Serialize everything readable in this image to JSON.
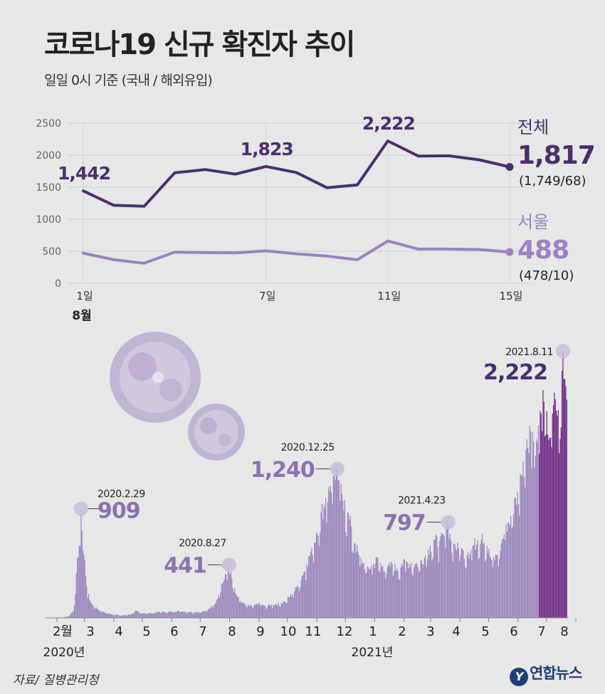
{
  "header": {
    "title": "코로나19 신규 확진자 추이",
    "subtitle": "일일 0시 기준 (국내 / 해외유입)"
  },
  "footer": {
    "source": "자료/ 질병관리청",
    "logo": "연합뉴스"
  },
  "colors": {
    "total": "#4a2f6e",
    "seoul": "#9a83bf",
    "bar": "#9a86bd",
    "bar_recent": "#6e2a86",
    "marker": "#c9bfdc",
    "background": "#e7e7e7"
  },
  "chart_data": [
    {
      "type": "line",
      "y_ticks": [
        "0",
        "500",
        "1000",
        "1500",
        "2000",
        "2500"
      ],
      "ylim": [
        0,
        2500
      ],
      "x_tick_labels": [
        {
          "x": 1,
          "label": "1일"
        },
        {
          "x": 7,
          "label": "7일"
        },
        {
          "x": 11,
          "label": "11일"
        },
        {
          "x": 15,
          "label": "15일"
        }
      ],
      "x_month_label": "8월",
      "x": [
        1,
        2,
        3,
        4,
        5,
        6,
        7,
        8,
        9,
        10,
        11,
        12,
        13,
        14,
        15
      ],
      "series": [
        {
          "name": "전체",
          "values": [
            1442,
            1218,
            1202,
            1725,
            1776,
            1704,
            1823,
            1729,
            1492,
            1537,
            2222,
            1987,
            1990,
            1928,
            1817
          ],
          "end_value": "1,817",
          "end_detail": "(1,749/68)",
          "point_labels": [
            {
              "x": 1,
              "text": "1,442"
            },
            {
              "x": 7,
              "text": "1,823"
            },
            {
              "x": 11,
              "text": "2,222"
            }
          ]
        },
        {
          "name": "서울",
          "values": [
            470,
            369,
            313,
            487,
            479,
            474,
            507,
            460,
            425,
            368,
            660,
            535,
            534,
            528,
            488
          ],
          "end_value": "488",
          "end_detail": "(478/10)"
        }
      ]
    },
    {
      "type": "bar",
      "x_labels": [
        "2월",
        "3",
        "4",
        "5",
        "6",
        "7",
        "8",
        "9",
        "10",
        "11",
        "12",
        "1",
        "2",
        "3",
        "4",
        "5",
        "6",
        "7",
        "8"
      ],
      "year_labels": [
        "2020년",
        "2021년"
      ],
      "ylim": [
        0,
        2400
      ],
      "anchors": [
        [
          0,
          0
        ],
        [
          12,
          1
        ],
        [
          18,
          3
        ],
        [
          25,
          20
        ],
        [
          29,
          60
        ],
        [
          31,
          200
        ],
        [
          33,
          500
        ],
        [
          35,
          600
        ],
        [
          37,
          909
        ],
        [
          39,
          560
        ],
        [
          41,
          480
        ],
        [
          43,
          260
        ],
        [
          46,
          150
        ],
        [
          50,
          100
        ],
        [
          60,
          50
        ],
        [
          70,
          30
        ],
        [
          80,
          20
        ],
        [
          90,
          30
        ],
        [
          95,
          60
        ],
        [
          100,
          40
        ],
        [
          110,
          40
        ],
        [
          120,
          50
        ],
        [
          130,
          50
        ],
        [
          140,
          60
        ],
        [
          150,
          50
        ],
        [
          160,
          50
        ],
        [
          170,
          60
        ],
        [
          175,
          100
        ],
        [
          180,
          150
        ],
        [
          185,
          280
        ],
        [
          190,
          360
        ],
        [
          193,
          441
        ],
        [
          196,
          330
        ],
        [
          200,
          200
        ],
        [
          205,
          140
        ],
        [
          210,
          110
        ],
        [
          215,
          100
        ],
        [
          220,
          110
        ],
        [
          225,
          120
        ],
        [
          230,
          100
        ],
        [
          240,
          110
        ],
        [
          250,
          130
        ],
        [
          260,
          200
        ],
        [
          265,
          270
        ],
        [
          270,
          350
        ],
        [
          275,
          450
        ],
        [
          280,
          580
        ],
        [
          285,
          700
        ],
        [
          290,
          880
        ],
        [
          295,
          1000
        ],
        [
          300,
          1100
        ],
        [
          303,
          1180
        ],
        [
          305,
          1150
        ],
        [
          307,
          1240
        ],
        [
          309,
          1150
        ],
        [
          312,
          1030
        ],
        [
          315,
          980
        ],
        [
          318,
          880
        ],
        [
          322,
          760
        ],
        [
          326,
          620
        ],
        [
          330,
          520
        ],
        [
          335,
          450
        ],
        [
          340,
          420
        ],
        [
          345,
          450
        ],
        [
          350,
          500
        ],
        [
          355,
          430
        ],
        [
          360,
          420
        ],
        [
          365,
          450
        ],
        [
          370,
          410
        ],
        [
          375,
          450
        ],
        [
          380,
          470
        ],
        [
          385,
          460
        ],
        [
          390,
          450
        ],
        [
          395,
          480
        ],
        [
          400,
          520
        ],
        [
          405,
          600
        ],
        [
          410,
          650
        ],
        [
          415,
          640
        ],
        [
          420,
          680
        ],
        [
          422,
          750
        ],
        [
          424,
          797
        ],
        [
          426,
          700
        ],
        [
          430,
          620
        ],
        [
          435,
          580
        ],
        [
          440,
          560
        ],
        [
          445,
          550
        ],
        [
          450,
          600
        ],
        [
          455,
          650
        ],
        [
          460,
          700
        ],
        [
          465,
          600
        ],
        [
          470,
          480
        ],
        [
          475,
          520
        ],
        [
          480,
          620
        ],
        [
          485,
          780
        ],
        [
          490,
          850
        ],
        [
          495,
          1000
        ],
        [
          500,
          1200
        ],
        [
          503,
          1300
        ],
        [
          506,
          1400
        ],
        [
          510,
          1600
        ],
        [
          513,
          1550
        ],
        [
          516,
          1350
        ],
        [
          519,
          1600
        ],
        [
          522,
          1700
        ],
        [
          525,
          1800
        ],
        [
          528,
          1720
        ],
        [
          531,
          1500
        ],
        [
          534,
          1700
        ],
        [
          537,
          1820
        ],
        [
          540,
          1730
        ],
        [
          542,
          1490
        ],
        [
          545,
          2222
        ],
        [
          546,
          1987
        ],
        [
          547,
          1990
        ],
        [
          548,
          1928
        ],
        [
          549,
          1817
        ]
      ],
      "recent_start_index": 520,
      "annotations": [
        {
          "date": "2020.2.29",
          "value": "909",
          "day": 37,
          "v": 909
        },
        {
          "date": "2020.8.27",
          "value": "441",
          "day": 193,
          "v": 441
        },
        {
          "date": "2020.12.25",
          "value": "1,240",
          "day": 307,
          "v": 1240
        },
        {
          "date": "2021.4.23",
          "value": "797",
          "day": 424,
          "v": 797
        },
        {
          "date": "2021.8.11",
          "value": "2,222",
          "day": 545,
          "v": 2222
        }
      ]
    }
  ]
}
